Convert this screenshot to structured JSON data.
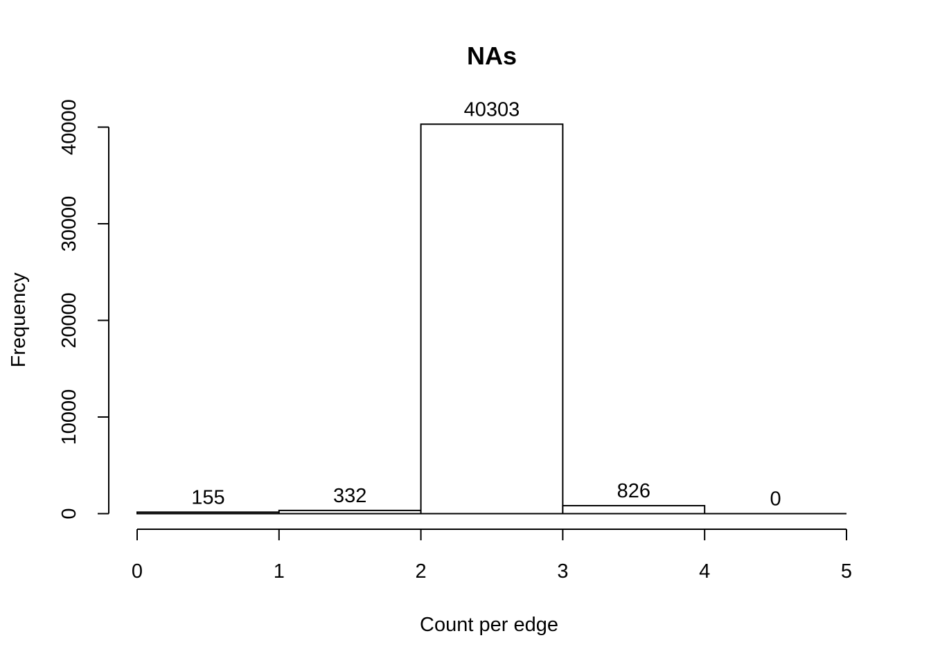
{
  "chart_data": {
    "type": "bar",
    "subtype": "histogram",
    "title": "NAs",
    "xlabel": "Count per edge",
    "ylabel": "Frequency",
    "bin_edges": [
      0,
      1,
      2,
      3,
      4,
      5
    ],
    "values": [
      155,
      332,
      40303,
      826,
      0
    ],
    "data_labels": [
      "155",
      "332",
      "40303",
      "826",
      "0"
    ],
    "xlim": [
      0,
      5
    ],
    "ylim": [
      0,
      40303
    ],
    "x_ticks": [
      0,
      1,
      2,
      3,
      4,
      5
    ],
    "x_tick_labels": [
      "0",
      "1",
      "2",
      "3",
      "4",
      "5"
    ],
    "y_ticks": [
      0,
      10000,
      20000,
      30000,
      40000
    ],
    "y_tick_labels": [
      "0",
      "10000",
      "20000",
      "30000",
      "40000"
    ],
    "grid": false,
    "legend": "none",
    "bar_fill": "#ffffff",
    "bar_stroke": "#000000"
  }
}
